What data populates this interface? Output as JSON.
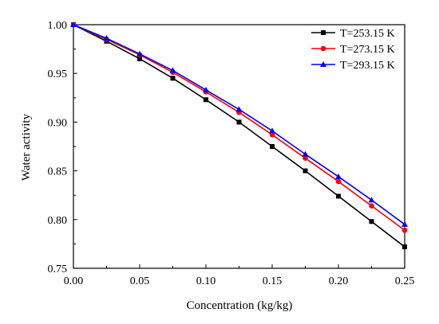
{
  "chart_data": {
    "type": "line",
    "xlabel": "Concentration (kg/kg)",
    "ylabel": "Water activity",
    "xlim": [
      0.0,
      0.25
    ],
    "ylim": [
      0.75,
      1.0
    ],
    "x_ticks": [
      "0.00",
      "0.05",
      "0.10",
      "0.15",
      "0.20",
      "0.25"
    ],
    "y_ticks": [
      "0.75",
      "0.80",
      "0.85",
      "0.90",
      "0.95",
      "1.00"
    ],
    "grid": false,
    "legend_position": "top-right",
    "x": [
      0.0,
      0.025,
      0.05,
      0.075,
      0.1,
      0.125,
      0.15,
      0.175,
      0.2,
      0.225,
      0.25
    ],
    "series": [
      {
        "name": "T=253.15 K",
        "color": "#000000",
        "marker": "square",
        "values": [
          1.0,
          0.983,
          0.965,
          0.945,
          0.923,
          0.9,
          0.875,
          0.85,
          0.824,
          0.798,
          0.772
        ]
      },
      {
        "name": "T=273.15 K",
        "color": "#ff0000",
        "marker": "circle",
        "values": [
          1.0,
          0.985,
          0.969,
          0.951,
          0.931,
          0.91,
          0.887,
          0.863,
          0.839,
          0.814,
          0.789
        ]
      },
      {
        "name": "T=293.15 K",
        "color": "#0000ff",
        "marker": "triangle",
        "values": [
          1.0,
          0.986,
          0.97,
          0.953,
          0.933,
          0.913,
          0.891,
          0.867,
          0.844,
          0.82,
          0.795
        ]
      }
    ]
  }
}
